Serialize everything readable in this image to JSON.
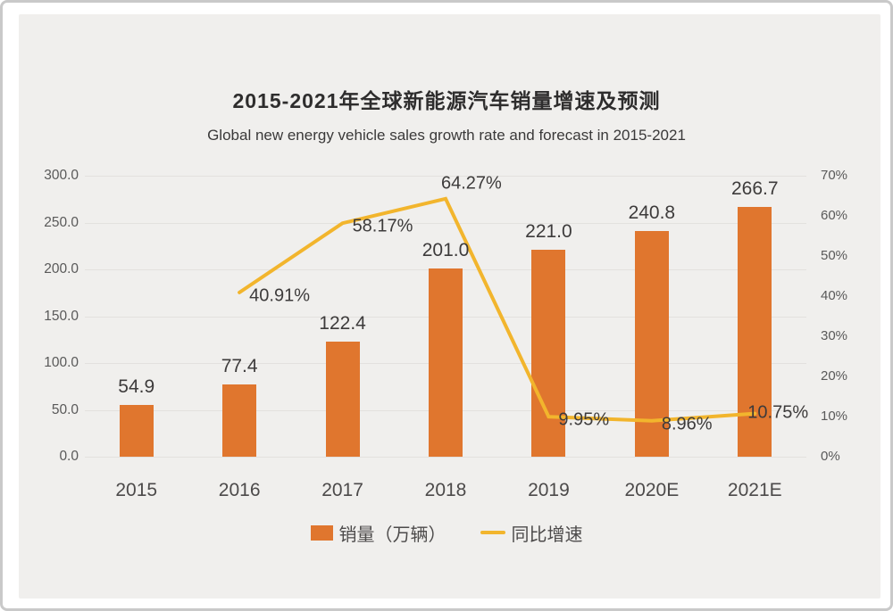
{
  "title": "2015-2021年全球新能源汽车销量增速及预测",
  "subtitle": "Global new energy vehicle sales growth rate and forecast in 2015-2021",
  "colors": {
    "panel_background": "#f0efed",
    "frame_border": "#c9c9c9",
    "gridline": "#e3e1de",
    "bar": "#e0762e",
    "line": "#f2b52d"
  },
  "chart_data": {
    "type": "bar+line combo",
    "categories": [
      "2015",
      "2016",
      "2017",
      "2018",
      "2019",
      "2020E",
      "2021E"
    ],
    "series": [
      {
        "name": "销量（万辆）",
        "type": "bar",
        "axis": "left",
        "color": "#e0762e",
        "values": [
          54.9,
          77.4,
          122.4,
          201.0,
          221.0,
          240.8,
          266.7
        ],
        "labels": [
          "54.9",
          "77.4",
          "122.4",
          "201.0",
          "221.0",
          "240.8",
          "266.7"
        ]
      },
      {
        "name": "同比增速",
        "type": "line",
        "axis": "right",
        "color": "#f2b52d",
        "values": [
          null,
          40.91,
          58.17,
          64.27,
          9.95,
          8.96,
          10.75
        ],
        "labels": [
          null,
          "40.91%",
          "58.17%",
          "64.27%",
          "9.95%",
          "8.96%",
          "10.75%"
        ],
        "label_placement": [
          null,
          "right",
          "right",
          "above",
          "right",
          "right",
          "above-right"
        ]
      }
    ],
    "left_axis": {
      "min": 0,
      "max": 300,
      "step": 50,
      "tick_labels": [
        "0.0",
        "50.0",
        "100.0",
        "150.0",
        "200.0",
        "250.0",
        "300.0"
      ]
    },
    "right_axis": {
      "min": 0,
      "max": 70,
      "step": 10,
      "tick_labels": [
        "0%",
        "10%",
        "20%",
        "30%",
        "40%",
        "50%",
        "60%",
        "70%"
      ]
    },
    "grid": true,
    "legend_position": "bottom-center"
  }
}
